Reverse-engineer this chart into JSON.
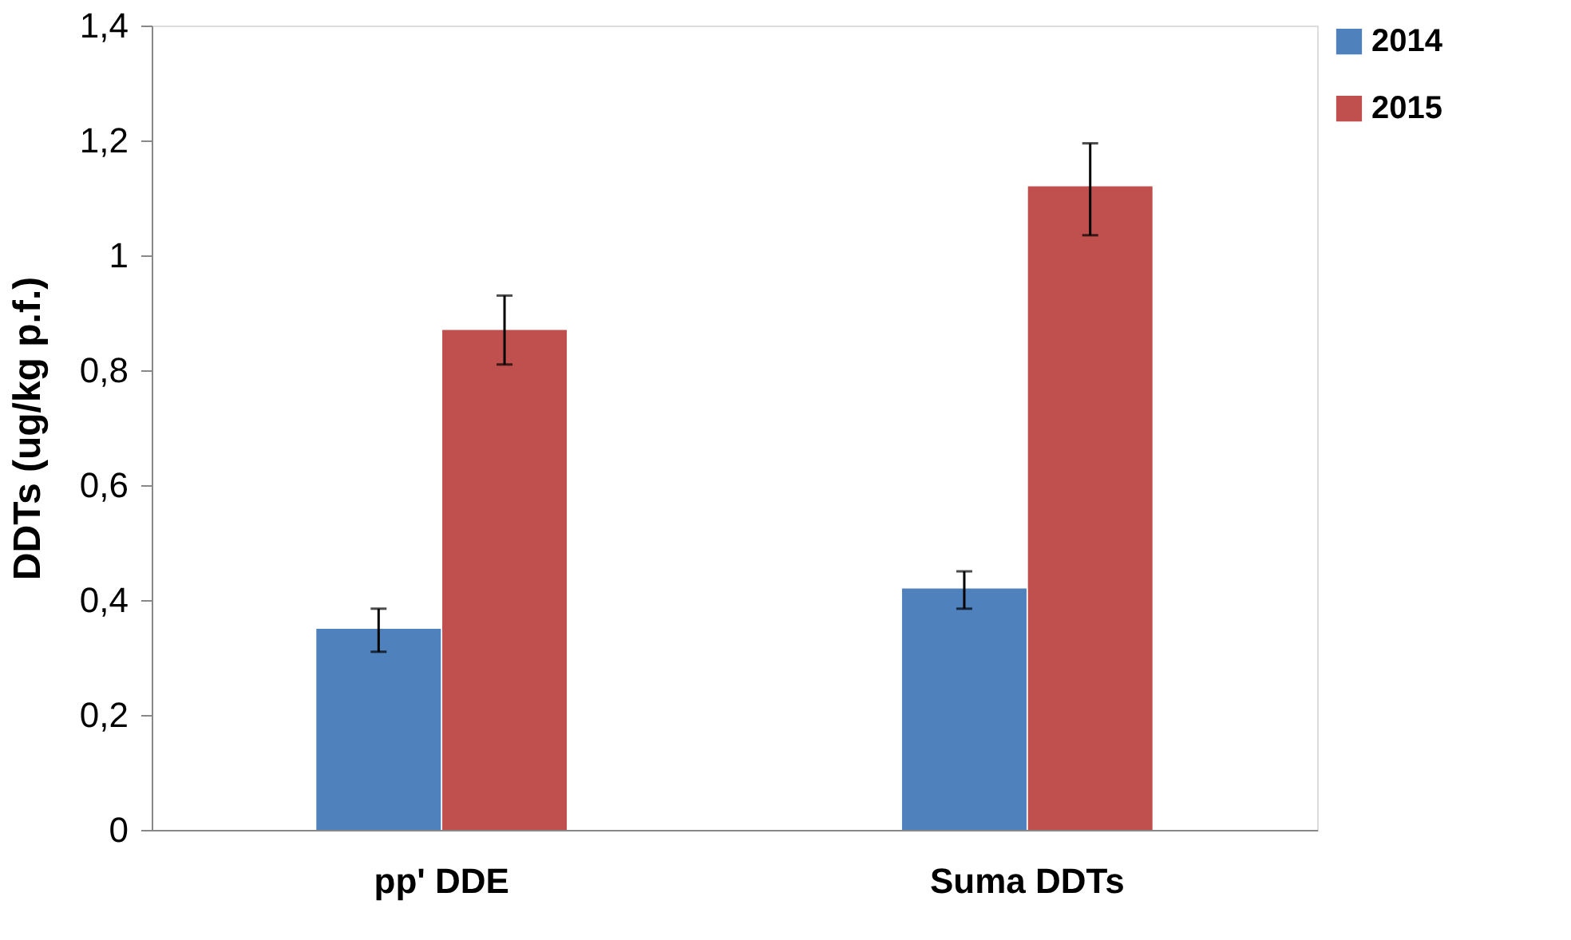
{
  "chart_data": {
    "type": "bar",
    "ylabel": "DDTs (ug/kg p.f.)",
    "categories": [
      "pp' DDE",
      "Suma DDTs"
    ],
    "series": [
      {
        "name": "2014",
        "color": "#4f81bd",
        "values": [
          0.35,
          0.42
        ],
        "errors": [
          [
            0.31,
            0.385
          ],
          [
            0.385,
            0.45
          ]
        ]
      },
      {
        "name": "2015",
        "color": "#c0504d",
        "values": [
          0.87,
          1.12
        ],
        "errors": [
          [
            0.81,
            0.93
          ],
          [
            1.035,
            1.195
          ]
        ]
      }
    ],
    "ylim": [
      0,
      1.4
    ],
    "yticks": [
      {
        "value": 0,
        "label": "0"
      },
      {
        "value": 0.2,
        "label": "0,2"
      },
      {
        "value": 0.4,
        "label": "0,4"
      },
      {
        "value": 0.6,
        "label": "0,6"
      },
      {
        "value": 0.8,
        "label": "0,8"
      },
      {
        "value": 1,
        "label": "1"
      },
      {
        "value": 1.2,
        "label": "1,2"
      },
      {
        "value": 1.4,
        "label": "1,4"
      }
    ],
    "grid": false,
    "legend": "right"
  }
}
